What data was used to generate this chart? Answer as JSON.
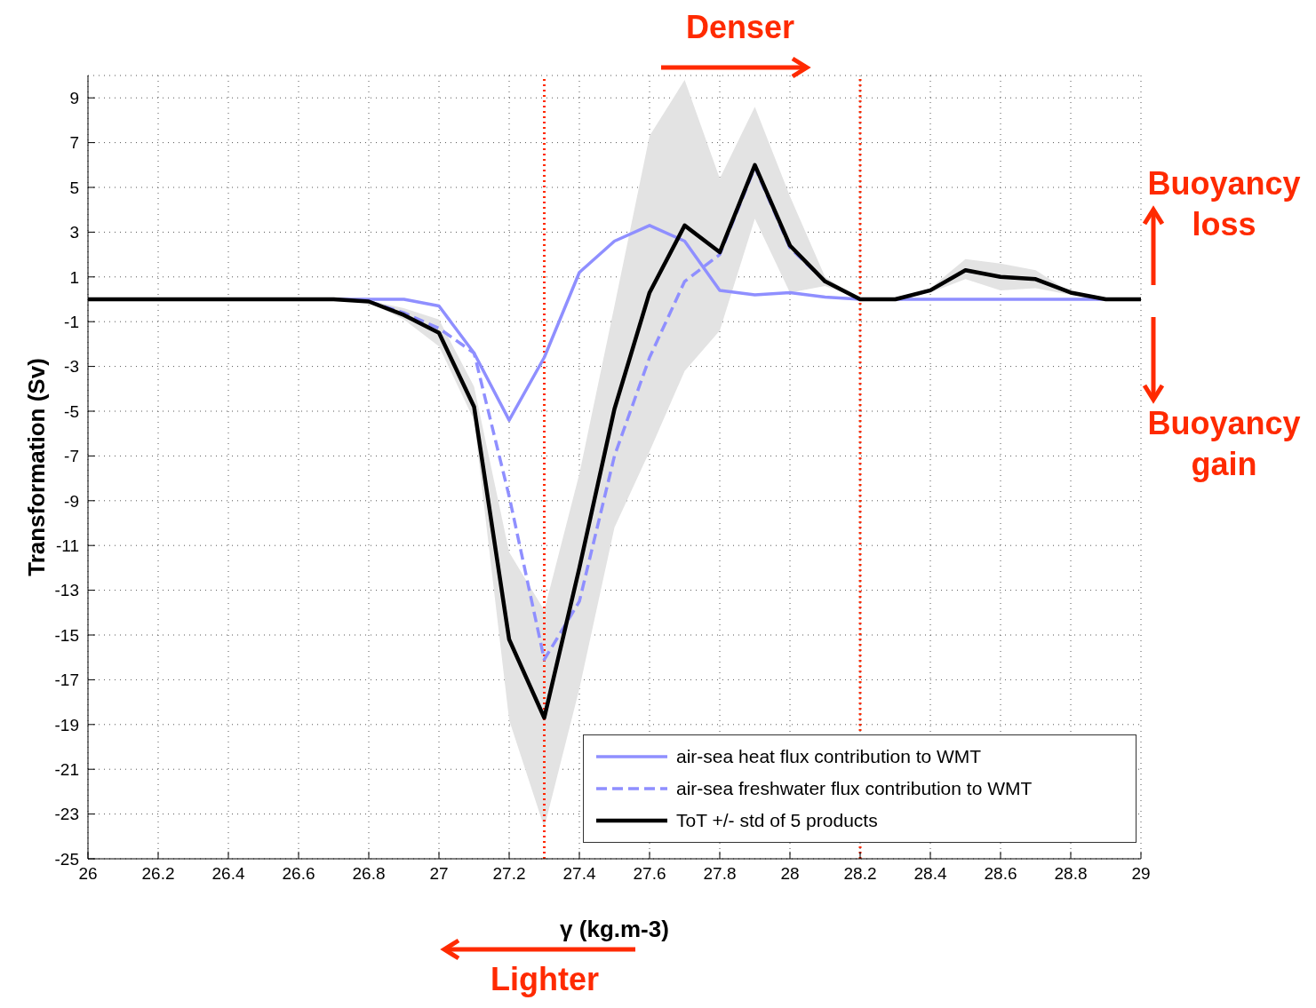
{
  "chart_data": {
    "type": "line",
    "xlabel": "γ (kg.m-3)",
    "ylabel": "Transformation (Sv)",
    "x": [
      26,
      26.1,
      26.2,
      26.3,
      26.4,
      26.5,
      26.6,
      26.7,
      26.8,
      26.9,
      27,
      27.1,
      27.2,
      27.3,
      27.4,
      27.5,
      27.6,
      27.7,
      27.8,
      27.9,
      28,
      28.1,
      28.2,
      28.3,
      28.4,
      28.5,
      28.6,
      28.7,
      28.8,
      28.9,
      29
    ],
    "series": [
      {
        "name": "air-sea heat flux contribution to WMT",
        "color": "#8f8fff",
        "line_style": "solid",
        "values": [
          null,
          null,
          null,
          null,
          null,
          null,
          0,
          0,
          0,
          0,
          -0.3,
          -2.4,
          -5.4,
          -2.6,
          1.2,
          2.6,
          3.3,
          2.6,
          0.4,
          0.2,
          0.3,
          0.1,
          0,
          0,
          0,
          0,
          0,
          0,
          0,
          0,
          0
        ]
      },
      {
        "name": "air-sea freshwater flux contribution to WMT",
        "color": "#8f8fff",
        "line_style": "dashed",
        "values": [
          null,
          null,
          null,
          null,
          null,
          null,
          null,
          null,
          -0.1,
          -0.6,
          -1.3,
          -2.4,
          -8.8,
          -16.1,
          -13.5,
          -7,
          -2.6,
          0.8,
          2,
          5.9,
          2.3,
          0.8,
          0,
          0,
          0.4,
          1.3,
          1,
          0.9,
          0.3,
          0,
          0
        ]
      },
      {
        "name": "ToT +/- std of 5 products",
        "color": "#000000",
        "line_style": "solid",
        "values": [
          0,
          0,
          0,
          0,
          0,
          0,
          0,
          0,
          -0.1,
          -0.7,
          -1.5,
          -4.8,
          -15.2,
          -18.7,
          -12,
          -4.9,
          0.3,
          3.3,
          2.1,
          6,
          2.4,
          0.8,
          0,
          0,
          0.4,
          1.3,
          1,
          0.9,
          0.3,
          0,
          0
        ],
        "lower": [
          0,
          0,
          0,
          0,
          0,
          0,
          0,
          0,
          -0.15,
          -0.9,
          -2.1,
          -5.4,
          -18.8,
          -23.6,
          -17.4,
          -10.2,
          -6.8,
          -3.2,
          -1.4,
          3.6,
          0.3,
          0.6,
          0,
          0,
          0.3,
          0.9,
          0.4,
          0.5,
          0.2,
          0,
          0
        ],
        "upper": [
          0,
          0,
          0,
          0,
          0,
          0,
          0,
          0,
          -0.05,
          -0.4,
          -0.9,
          -3.9,
          -11.3,
          -13.9,
          -7.8,
          -0.3,
          7.3,
          9.8,
          5.4,
          8.6,
          4.6,
          1,
          0,
          0,
          0.5,
          1.8,
          1.6,
          1.3,
          0.3,
          0,
          0
        ]
      }
    ],
    "xlim": [
      26,
      29
    ],
    "xticks": [
      26,
      26.2,
      26.4,
      26.6,
      26.8,
      27,
      27.2,
      27.4,
      27.6,
      27.8,
      28,
      28.2,
      28.4,
      28.6,
      28.8,
      29
    ],
    "ylim": [
      -25,
      10
    ],
    "yticks": [
      -25,
      -23,
      -21,
      -19,
      -17,
      -15,
      -13,
      -11,
      -9,
      -7,
      -5,
      -3,
      -1,
      1,
      3,
      5,
      7,
      9
    ],
    "grid": true,
    "legend": "bottom right",
    "marker": "none",
    "ref_lines": [
      {
        "axis": "x",
        "value": 27.3,
        "color": "#ff2a00",
        "line_style": "dotted"
      },
      {
        "axis": "x",
        "value": 28.2,
        "color": "#ff2a00",
        "line_style": "dotted"
      }
    ],
    "annotations": [
      "Denser",
      "Buoyancy loss",
      "Buoyancy gain",
      "Lighter"
    ]
  }
}
